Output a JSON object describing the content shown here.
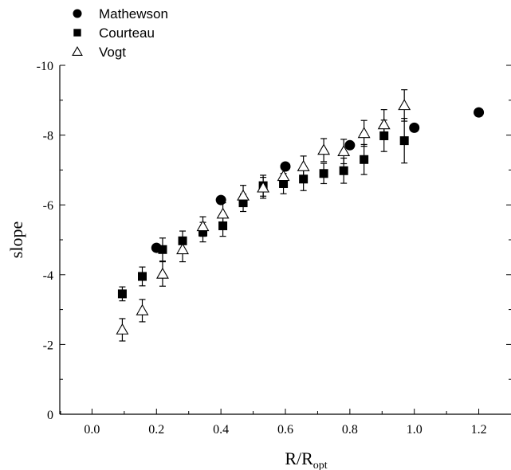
{
  "chart_data": {
    "type": "scatter",
    "title": "",
    "xlabel": "R/R",
    "xlabel_subscript": "opt",
    "ylabel": "slope",
    "xlim": [
      -0.1,
      1.3
    ],
    "ylim": [
      0,
      -10
    ],
    "y_inverted": true,
    "grid": false,
    "legend_position": "top-left, outside plot area",
    "x_ticks": [
      "0.0",
      "0.2",
      "0.4",
      "0.6",
      "0.8",
      "1.0",
      "1.2"
    ],
    "y_ticks": [
      "0",
      "-2",
      "-4",
      "-6",
      "-8",
      "-10"
    ],
    "x_tick_values": [
      0.0,
      0.2,
      0.4,
      0.6,
      0.8,
      1.0,
      1.2
    ],
    "y_tick_values": [
      0,
      -2,
      -4,
      -6,
      -8,
      -10
    ],
    "series": [
      {
        "name": "Mathewson",
        "marker": "filled-circle",
        "x": [
          0.2,
          0.4,
          0.6,
          0.8,
          1.0,
          1.2
        ],
        "y": [
          -4.77,
          -6.14,
          -7.1,
          -7.71,
          -8.21,
          -8.65
        ],
        "err": [
          null,
          null,
          null,
          null,
          null,
          null
        ]
      },
      {
        "name": "Courteau",
        "marker": "filled-square",
        "x": [
          0.094,
          0.156,
          0.219,
          0.281,
          0.344,
          0.406,
          0.469,
          0.531,
          0.594,
          0.656,
          0.719,
          0.781,
          0.844,
          0.906,
          0.969
        ],
        "y": [
          -3.45,
          -3.95,
          -4.72,
          -4.97,
          -5.22,
          -5.4,
          -6.06,
          -6.55,
          -6.61,
          -6.74,
          -6.9,
          -6.98,
          -7.3,
          -7.98,
          -7.84
        ],
        "err": [
          0.2,
          0.27,
          0.33,
          0.28,
          0.28,
          0.3,
          0.25,
          0.3,
          0.29,
          0.33,
          0.29,
          0.36,
          0.43,
          0.45,
          0.64
        ]
      },
      {
        "name": "Vogt",
        "marker": "open-triangle",
        "x": [
          0.094,
          0.156,
          0.219,
          0.281,
          0.344,
          0.406,
          0.469,
          0.531,
          0.594,
          0.656,
          0.719,
          0.781,
          0.844,
          0.906,
          0.969
        ],
        "y": [
          -2.42,
          -2.97,
          -4.02,
          -4.72,
          -5.38,
          -5.74,
          -6.26,
          -6.49,
          -6.82,
          -7.1,
          -7.57,
          -7.53,
          -8.05,
          -8.3,
          -8.85
        ],
        "err": [
          0.32,
          0.32,
          0.35,
          0.35,
          0.28,
          0.32,
          0.3,
          0.3,
          0.3,
          0.3,
          0.33,
          0.35,
          0.37,
          0.43,
          0.45
        ]
      }
    ]
  },
  "colors": {
    "ink": "#000000",
    "background": "#ffffff"
  }
}
